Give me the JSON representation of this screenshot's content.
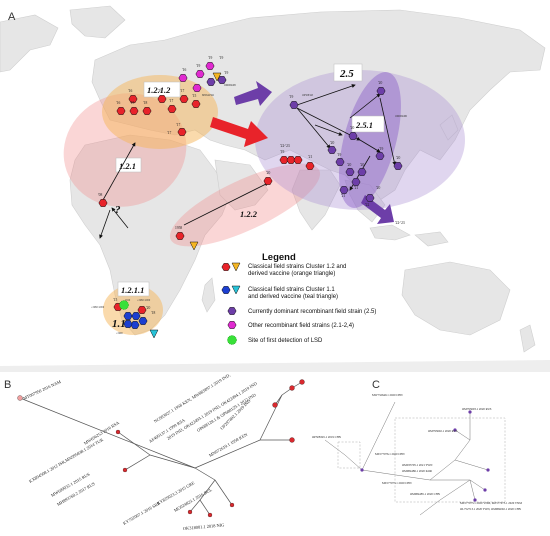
{
  "panels": {
    "a": "A",
    "b": "B",
    "c": "C"
  },
  "map": {
    "clusters": {
      "c121": "1.2.1",
      "c1212": "1.2.1.2",
      "c1211": "1.2.1.1",
      "c122": "1.2.2",
      "c11": "1.1",
      "c25": "2.5",
      "c251": "2.5.1",
      "question": "?"
    },
    "years": {
      "y_sa_1": "≤1980~2000",
      "y_sa_2": "≤1980~2000",
      "y_sa_3": "'15",
      "y_sa_4": "≤1990",
      "y_sa_5": "'20",
      "y_sa_6": "'18",
      "y_sa_7": "2020",
      "y_af_1": "'08",
      "y_af_2": "1958",
      "y_af_3": "'17",
      "y_eu_1": "'16",
      "y_eu_2": "'16",
      "y_eu_3": "'15",
      "y_eu_4": "'18",
      "y_eu_5": "'19",
      "y_eu_6": "'17",
      "y_eu_7": "'17",
      "y_eu_8": "'15",
      "y_eu_9": "'16",
      "y_ru_1": "'19",
      "y_ru_2": "'19",
      "y_ru_3": "'19",
      "y_ru_4": "'19",
      "y_ru_5": "'19",
      "y_ru_6": "'20",
      "y_mid_1": "'17",
      "y_mid_2": "'20",
      "y_ind_1": "'19",
      "y_ind_2": "'22-'23",
      "y_ind_3": "'21",
      "y_ind_4": "'20",
      "y_asia_1": "'20",
      "y_asia_2": "'19",
      "y_asia_3": "'19",
      "y_asia_4": "'20",
      "y_asia_5": "'20",
      "y_asia_6": "'20",
      "y_asia_7": "'21",
      "y_asia_8": "'20",
      "y_asia_9": "'21",
      "y_asia_10": "'22",
      "y_asia_11": "'22-'23"
    },
    "ids": {
      "om": "OM984485",
      "mn": "MN642592",
      "op1": "OP508345",
      "om2": "OM984486"
    },
    "legend": {
      "title": "Legend",
      "items": [
        "Classical field strains Cluster 1.2 and derived vaccine (orange triangle)",
        "Classical field strains Cluster 1.1 and derived vaccine (teal triangle)",
        "Currently dominant recombinant field strain (2.5)",
        "Other recombinant field strains (2.1-2,4)",
        "Site of first detection of LSD"
      ],
      "colors": {
        "red": "#e8232a",
        "orange": "#f5b623",
        "blue": "#1c3fd1",
        "teal": "#27c3d8",
        "purple": "#6d3ea8",
        "magenta": "#e02ad0",
        "green": "#38e038"
      }
    }
  },
  "tree_b": {
    "labels": [
      "MT007950 2016 NAM",
      "MW656253 2016 RSA",
      "AF409137.1 1999 RSA",
      "KX894508.1 2012 ISR,MN995838.1 2014 TUR",
      "MW699032.1 2015 RUS",
      "MH893760.2 2017 RUS",
      "KY829023.3 2015 GRE",
      "KY702007.1 2016 SRB",
      "MG024823.1 2016 BUL",
      "OK318001.1 2018 NIG",
      "NC003027.1 1958 KEN, MW883897.1 2019 IND,",
      "2019 IND, OK422493.1 2019 IND, OK422494.1 2019 IND",
      "OP688128.1 & OP688129.1 2022 IND",
      "OP297402.1 2019 IND",
      "MN072619.1 1958 KEN"
    ]
  },
  "tree_c": {
    "labels": [
      "MW732649.1 2020 CHN",
      "OP508345.1 2019 CHN",
      "OM793603.1 2020 RUS",
      "OM793602.1 2020 RUS",
      "MZ577076.1 2020 CHN",
      "OM033705.1 2021 TWN",
      "OM984486.1 2020 KOR",
      "MZ577073.1 2020 CHN",
      "OM984485.1 2020 CHN",
      "MZ577075.1 2020 VNM, MZ577073.1 2020 VNM",
      "OL752713.1 2020 TWN, OM984092.1 2020 CHN"
    ]
  }
}
